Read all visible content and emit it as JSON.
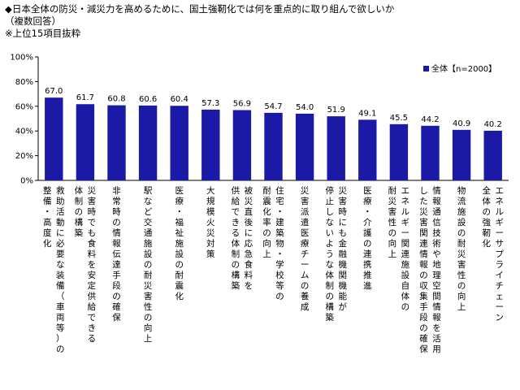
{
  "header": {
    "title": "◆日本全体の防災・減災力を高めるために、国土強靭化では何を重点的に取り組んで欲しいか",
    "subtitle": "（複数回答）",
    "note": "※上位15項目抜粋"
  },
  "colors": {
    "bar": "#1a1aa6",
    "axis": "#000000"
  },
  "chart_data": {
    "type": "bar",
    "ylim": [
      0,
      100
    ],
    "yticks": [
      "0%",
      "20%",
      "40%",
      "60%",
      "80%",
      "100%"
    ],
    "ytick_values": [
      0,
      20,
      40,
      60,
      80,
      100
    ],
    "legend": {
      "label": "全体【n=2000】",
      "position": "top-right"
    },
    "grid": false,
    "categories": [
      [
        "救助活動に必要な装備（車両等）の",
        "整備・高度化"
      ],
      [
        "災害時でも食料を安定供給できる",
        "体制の構築"
      ],
      [
        "非常時の情報伝達手段の確保"
      ],
      [
        "駅など交通施設の耐災害性の向上"
      ],
      [
        "医療・福祉施設の耐震化"
      ],
      [
        "大規模火災対策"
      ],
      [
        "被災直後に応急食料を",
        "供給できる体制の構築"
      ],
      [
        "住宅・建築物・学校等の",
        "耐震化率の向上"
      ],
      [
        "災害派遣医療チームの養成"
      ],
      [
        "災害時にも金融機関機能が",
        "停止しないような体制の構築"
      ],
      [
        "医療・介護の連携推進"
      ],
      [
        "エネルギー関連施設自体の",
        "耐災害性の向上"
      ],
      [
        "情報通信技術や地理空間情報を活用",
        "した災害関連情報の収集手段の確保"
      ],
      [
        "物流施設の耐災害性の向上"
      ],
      [
        "エネルギーサプライチェーン",
        "全体の強靭化"
      ]
    ],
    "series": [
      {
        "name": "全体【n=2000】",
        "values": [
          67.0,
          61.7,
          60.8,
          60.6,
          60.4,
          57.3,
          56.9,
          54.7,
          54.0,
          51.9,
          49.1,
          45.5,
          44.2,
          40.9,
          40.2
        ],
        "labels": [
          "67.0",
          "61.7",
          "60.8",
          "60.6",
          "60.4",
          "57.3",
          "56.9",
          "54.7",
          "54.0",
          "51.9",
          "49.1",
          "45.5",
          "44.2",
          "40.9",
          "40.2"
        ]
      }
    ]
  }
}
